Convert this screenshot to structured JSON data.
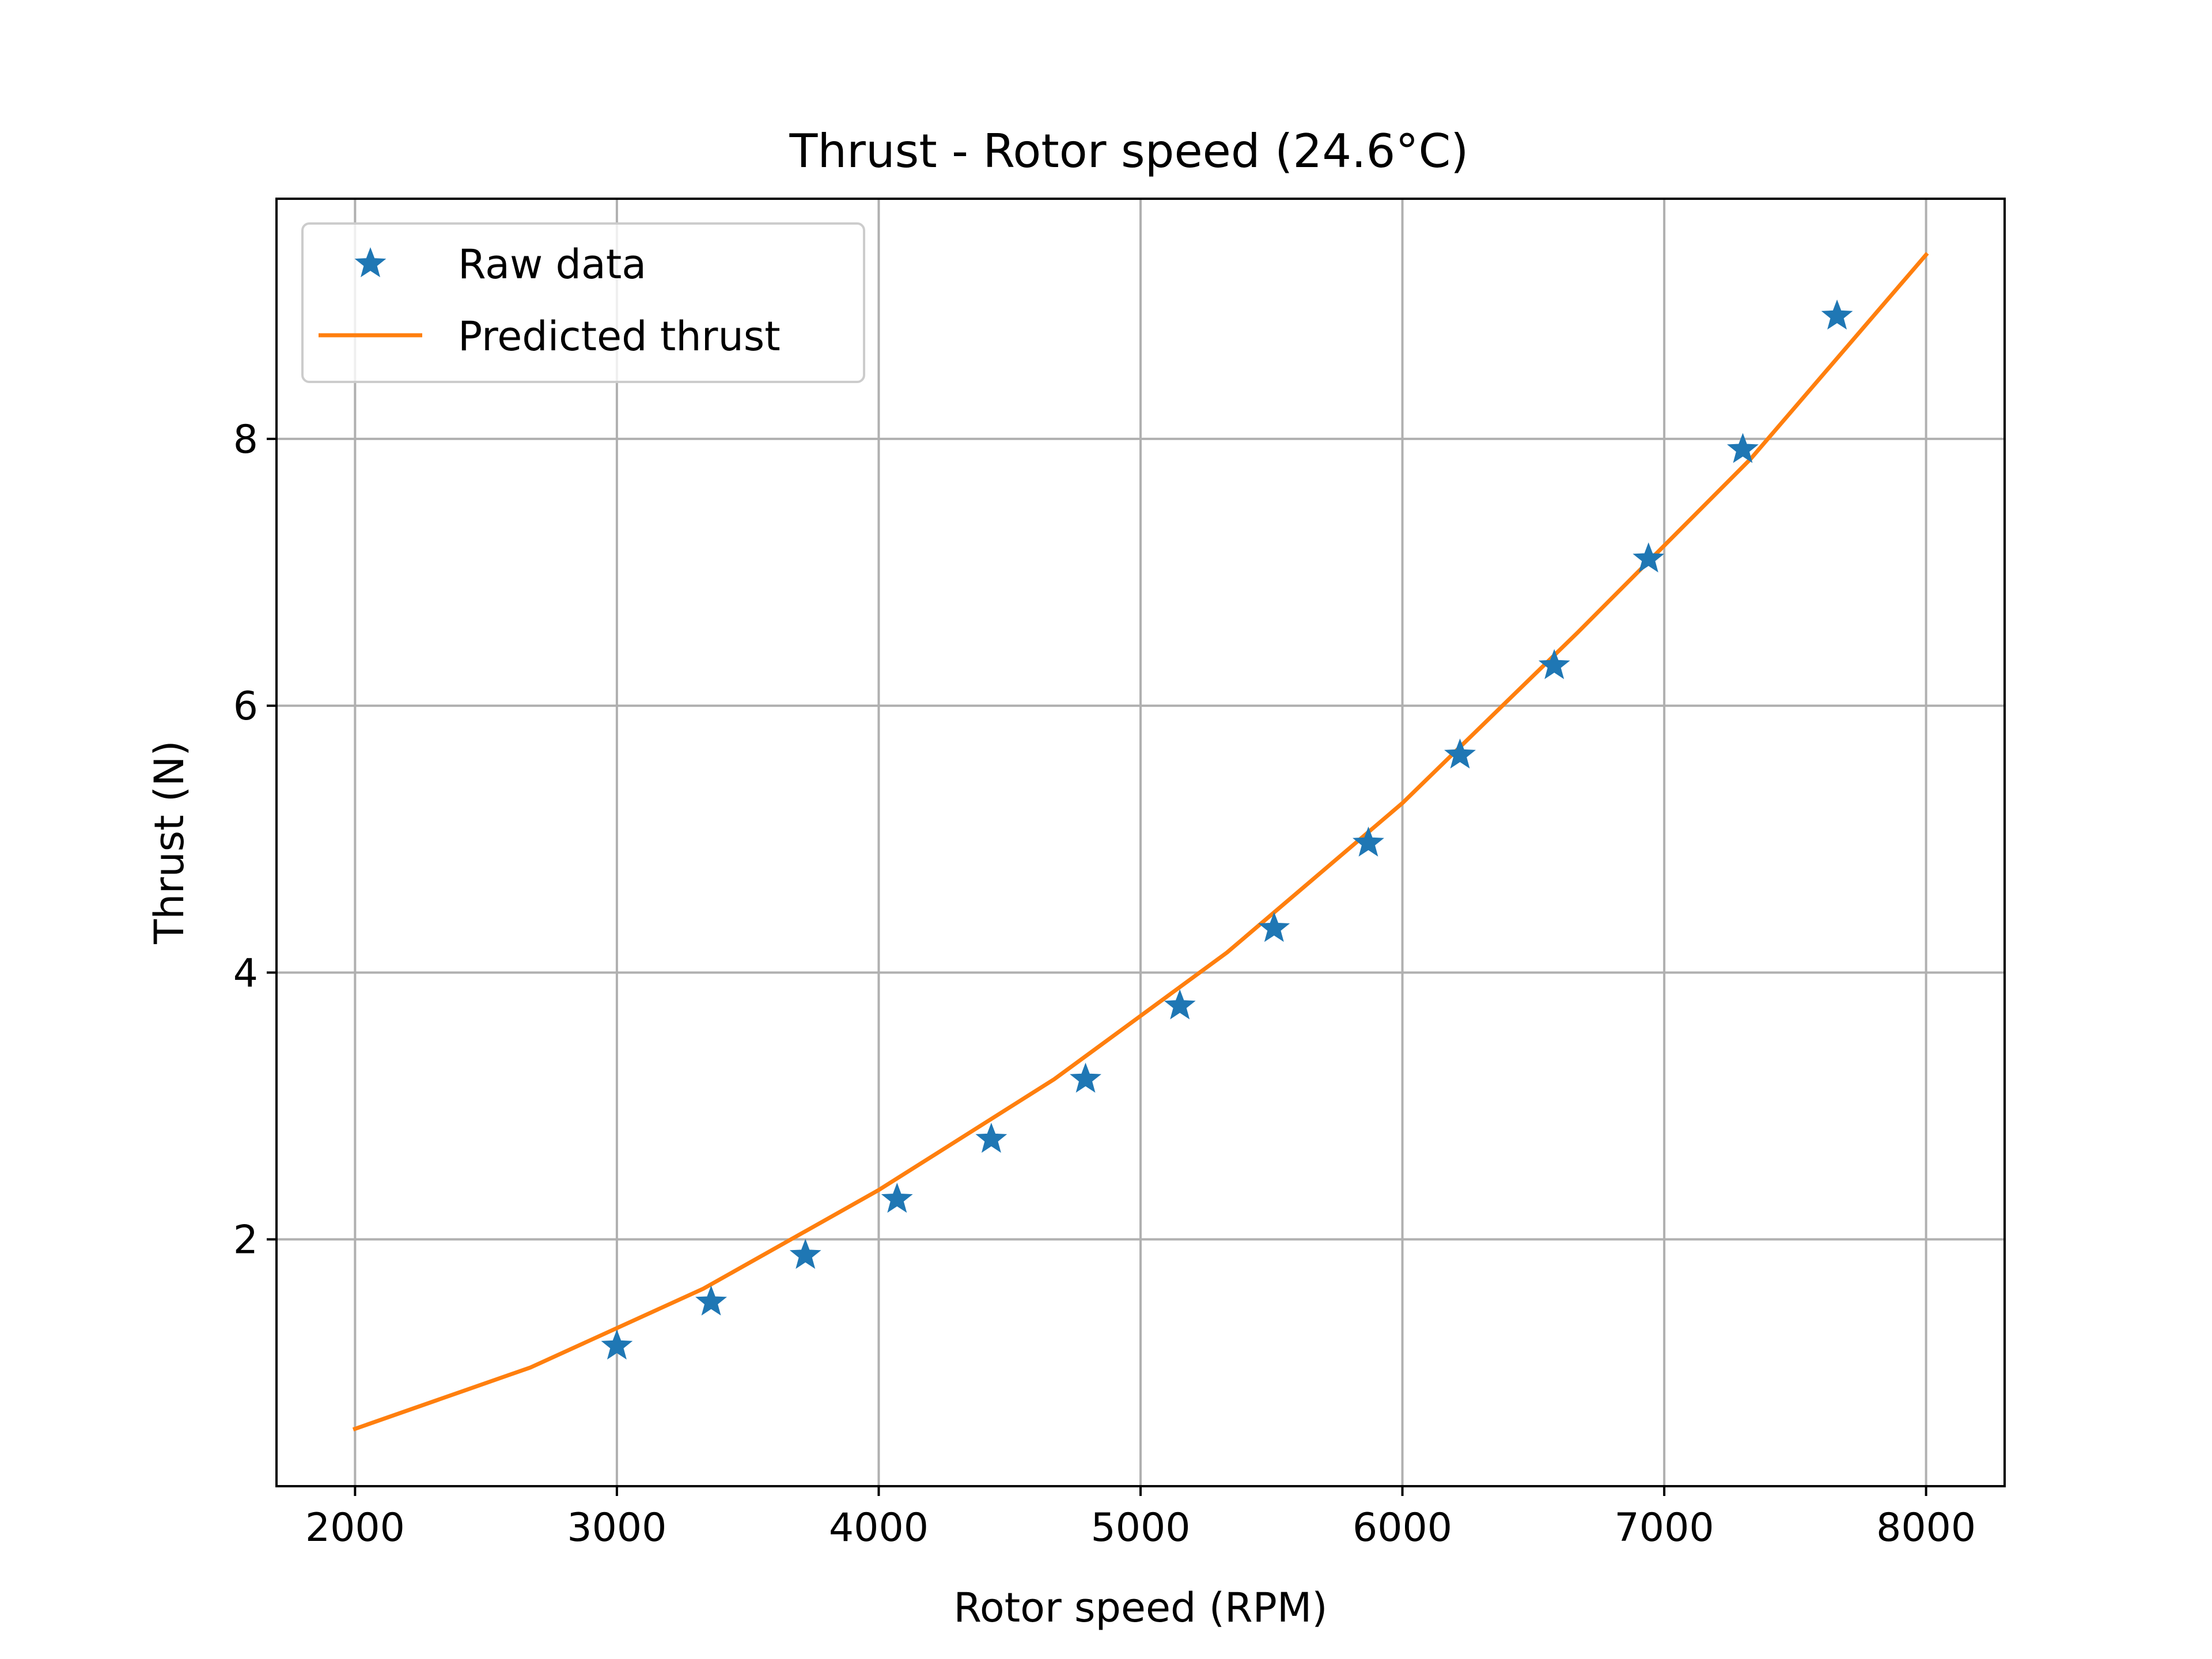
{
  "chart_data": {
    "type": "line",
    "title": "Thrust - Rotor speed (24.6°C)",
    "xlabel": "Rotor speed (RPM)",
    "ylabel": "Thrust (N)",
    "xlim": [
      1700,
      8300
    ],
    "ylim": [
      0.15,
      9.8
    ],
    "xticks": [
      2000,
      3000,
      4000,
      5000,
      6000,
      7000,
      8000
    ],
    "yticks": [
      2,
      4,
      6,
      8
    ],
    "grid": true,
    "legend_position": "upper-left",
    "series": [
      {
        "name": "Raw data",
        "kind": "scatter",
        "marker": "star",
        "color": "#1f77b4",
        "x": [
          3000,
          3360,
          3720,
          4070,
          4430,
          4790,
          5150,
          5510,
          5870,
          6220,
          6580,
          6940,
          7300,
          7660
        ],
        "y": [
          1.2,
          1.53,
          1.88,
          2.3,
          2.75,
          3.2,
          3.75,
          4.33,
          4.97,
          5.63,
          6.3,
          7.1,
          7.92,
          8.92
        ]
      },
      {
        "name": "Predicted thrust",
        "kind": "line",
        "color": "#ff7f0e",
        "x": [
          2000,
          2670,
          3330,
          4000,
          4670,
          5330,
          6000,
          6670,
          7330,
          8000
        ],
        "y": [
          0.58,
          1.04,
          1.63,
          2.37,
          3.2,
          4.15,
          5.27,
          6.55,
          7.85,
          9.38
        ]
      }
    ]
  }
}
